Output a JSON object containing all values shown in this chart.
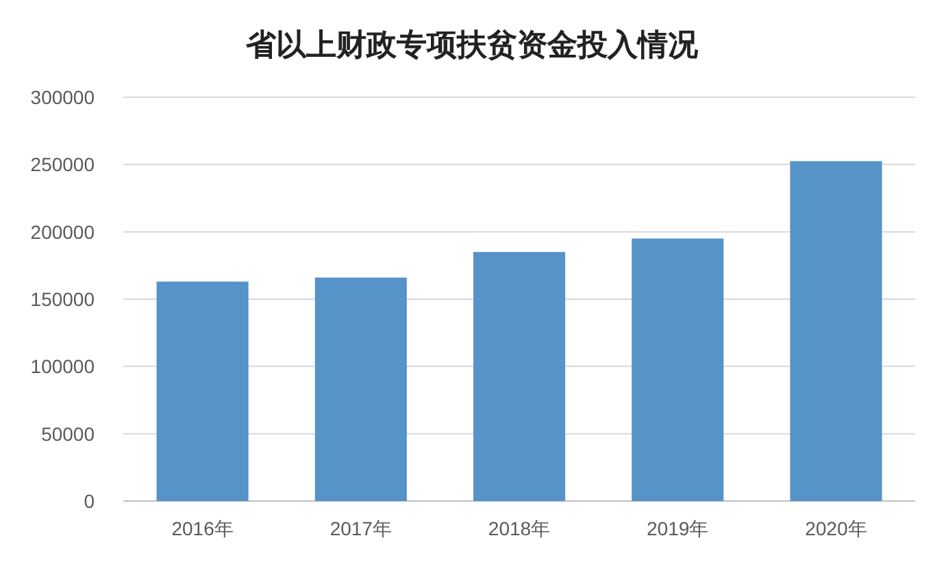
{
  "chart_data": {
    "type": "bar",
    "title": "省以上财政专项扶贫资金投入情况",
    "categories": [
      "2016年",
      "2017年",
      "2018年",
      "2019年",
      "2020年"
    ],
    "values": [
      163000,
      166000,
      185000,
      195000,
      252500
    ],
    "color": "#5593c8",
    "ylim": [
      0,
      300000
    ],
    "yticks": [
      0,
      50000,
      100000,
      150000,
      200000,
      250000,
      300000
    ],
    "grid": "y"
  }
}
